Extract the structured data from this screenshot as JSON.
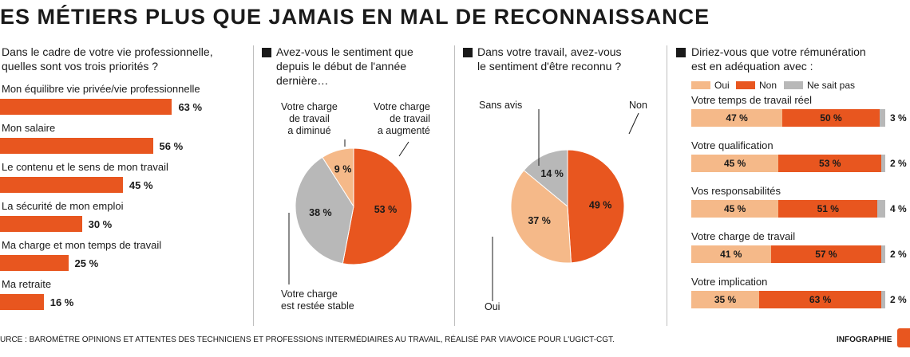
{
  "title": "ES MÉTIERS PLUS QUE JAMAIS EN MAL DE RECONNAISSANCE",
  "source": "URCE : BAROMÈTRE OPINIONS ET ATTENTES DES TECHNICIENS ET PROFESSIONS INTERMÉDIAIRES AU TRAVAIL, RÉALISÉ PAR VIAVOICE POUR L'UGICT-CGT.",
  "credit": "INFOGRAPHIE",
  "colors": {
    "orange": "#e8561f",
    "beige": "#f5b989",
    "grey": "#b8b8b8"
  },
  "chart_data": [
    {
      "type": "bar",
      "title": "Dans le cadre de votre vie professionnelle, quelles sont vos trois priorités ?",
      "title_lines": [
        "Dans le cadre de votre vie professionnelle,",
        "quelles sont vos trois priorités ?"
      ],
      "categories": [
        "Mon équilibre vie privée/vie professionnelle",
        "Mon salaire",
        "Le contenu et le sens de mon travail",
        "La sécurité de mon emploi",
        "Ma charge et mon temps de travail",
        "Ma retraite"
      ],
      "values": [
        63,
        56,
        45,
        30,
        25,
        16
      ],
      "value_labels": [
        "63 %",
        "56 %",
        "45 %",
        "30 %",
        "25 %",
        "16 %"
      ]
    },
    {
      "type": "pie",
      "title": "Avez-vous le sentiment que depuis le début de l'année dernière…",
      "title_lines": [
        "Avez-vous le sentiment que",
        "depuis le début de l'année",
        "dernière…"
      ],
      "slices": [
        {
          "label": "Votre charge de travail a augmenté",
          "label_lines": [
            "Votre charge",
            "de travail",
            "a augmenté"
          ],
          "value": 53,
          "value_label": "53 %",
          "color": "orange"
        },
        {
          "label": "Votre charge est restée stable",
          "label_lines": [
            "Votre charge",
            "est restée stable"
          ],
          "value": 38,
          "value_label": "38 %",
          "color": "grey"
        },
        {
          "label": "Votre charge de travail a diminué",
          "label_lines": [
            "Votre charge",
            "de travail",
            "a diminué"
          ],
          "value": 9,
          "value_label": "9 %",
          "color": "beige"
        }
      ]
    },
    {
      "type": "pie",
      "title": "Dans votre travail, avez-vous le sentiment d'être reconnu ?",
      "title_lines": [
        "Dans votre travail, avez-vous",
        "le sentiment d'être reconnu ?"
      ],
      "slices": [
        {
          "label": "Non",
          "label_lines": [
            "Non"
          ],
          "value": 49,
          "value_label": "49 %",
          "color": "orange"
        },
        {
          "label": "Oui",
          "label_lines": [
            "Oui"
          ],
          "value": 37,
          "value_label": "37 %",
          "color": "beige"
        },
        {
          "label": "Sans avis",
          "label_lines": [
            "Sans avis"
          ],
          "value": 14,
          "value_label": "14 %",
          "color": "grey"
        }
      ]
    },
    {
      "type": "bar",
      "stacked": true,
      "title": "Diriez-vous que votre rémunération est en adéquation avec :",
      "title_lines": [
        "Diriez-vous que votre rémunération",
        "est en adéquation avec :"
      ],
      "categories": [
        "Votre temps de travail réel",
        "Votre qualification",
        "Vos responsabilités",
        "Votre charge de travail",
        "Votre implication"
      ],
      "series": [
        {
          "name": "Oui",
          "color": "beige",
          "values": [
            47,
            45,
            45,
            41,
            35
          ]
        },
        {
          "name": "Non",
          "color": "orange",
          "values": [
            50,
            53,
            51,
            57,
            63
          ]
        },
        {
          "name": "Ne sait pas",
          "color": "grey",
          "values": [
            3,
            2,
            4,
            2,
            2
          ]
        }
      ]
    }
  ]
}
